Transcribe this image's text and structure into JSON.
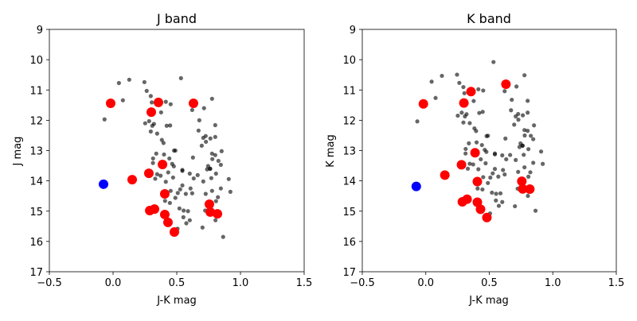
{
  "chart_data": [
    {
      "type": "scatter",
      "title": "J band",
      "xlabel": "J-K mag",
      "ylabel": "J mag",
      "xlim": [
        -0.5,
        1.5
      ],
      "ylim": [
        17,
        9
      ],
      "y_inverted": true,
      "xticks": [
        "−0.5",
        "0.0",
        "0.5",
        "1.0",
        "1.5"
      ],
      "xtick_values": [
        -0.5,
        0,
        0.5,
        1.0,
        1.5
      ],
      "yticks": [
        "9",
        "10",
        "11",
        "12",
        "13",
        "14",
        "15",
        "16",
        "17"
      ],
      "ytick_values": [
        9,
        10,
        11,
        12,
        13,
        14,
        15,
        16,
        17
      ],
      "y_field": "j"
    },
    {
      "type": "scatter",
      "title": "K band",
      "xlabel": "J-K mag",
      "ylabel": "K mag",
      "xlim": [
        -0.5,
        1.5
      ],
      "ylim": [
        17,
        9
      ],
      "y_inverted": true,
      "xticks": [
        "−0.5",
        "0.0",
        "0.5",
        "1.0",
        "1.5"
      ],
      "xtick_values": [
        -0.5,
        0,
        0.5,
        1.0,
        1.5
      ],
      "yticks": [
        "9",
        "10",
        "11",
        "12",
        "13",
        "14",
        "15",
        "16",
        "17"
      ],
      "ytick_values": [
        9,
        10,
        11,
        12,
        13,
        14,
        15,
        16,
        17
      ],
      "y_field": "k"
    }
  ],
  "series": {
    "field_stars": {
      "color": "#000000",
      "opacity": 0.6,
      "points_jk_j": [
        [
          0.046,
          10.77
        ],
        [
          0.127,
          10.66
        ],
        [
          0.246,
          10.74
        ],
        [
          0.533,
          10.61
        ],
        [
          0.264,
          11.03
        ],
        [
          0.296,
          11.2
        ],
        [
          0.077,
          11.34
        ],
        [
          0.304,
          11.41
        ],
        [
          0.414,
          11.39
        ],
        [
          0.452,
          11.47
        ],
        [
          0.777,
          11.29
        ],
        [
          0.621,
          11.66
        ],
        [
          0.714,
          11.6
        ],
        [
          -0.067,
          11.97
        ],
        [
          0.377,
          11.74
        ],
        [
          0.677,
          12.0
        ],
        [
          0.252,
          12.1
        ],
        [
          0.283,
          12.03
        ],
        [
          0.321,
          12.12
        ],
        [
          0.308,
          12.18
        ],
        [
          0.421,
          12.18
        ],
        [
          0.448,
          12.17
        ],
        [
          0.802,
          12.16
        ],
        [
          0.296,
          12.37
        ],
        [
          0.346,
          12.44
        ],
        [
          0.671,
          12.34
        ],
        [
          0.727,
          12.52
        ],
        [
          0.708,
          12.58
        ],
        [
          0.764,
          12.6
        ],
        [
          0.802,
          12.55
        ],
        [
          0.729,
          12.71
        ],
        [
          0.696,
          12.84
        ],
        [
          0.383,
          12.65
        ],
        [
          0.396,
          12.75
        ],
        [
          0.339,
          13.1
        ],
        [
          0.4,
          13.13
        ],
        [
          0.479,
          13.0
        ],
        [
          0.489,
          13.0
        ],
        [
          0.314,
          13.26
        ],
        [
          0.313,
          13.41
        ],
        [
          0.442,
          13.26
        ],
        [
          0.464,
          13.44
        ],
        [
          0.544,
          13.64
        ],
        [
          0.627,
          13.23
        ],
        [
          0.777,
          13.1
        ],
        [
          0.802,
          13.15
        ],
        [
          0.852,
          13.02
        ],
        [
          0.779,
          13.28
        ],
        [
          0.827,
          13.34
        ],
        [
          0.846,
          13.47
        ],
        [
          0.746,
          13.51
        ],
        [
          0.761,
          13.6
        ],
        [
          0.477,
          13.52
        ],
        [
          0.544,
          13.67
        ],
        [
          0.346,
          13.78
        ],
        [
          0.373,
          13.83
        ],
        [
          0.331,
          13.93
        ],
        [
          0.433,
          13.72
        ],
        [
          0.471,
          13.89
        ],
        [
          0.414,
          14.03
        ],
        [
          0.602,
          13.76
        ],
        [
          0.633,
          13.92
        ],
        [
          0.664,
          13.81
        ],
        [
          0.708,
          14.02
        ],
        [
          0.771,
          13.91
        ],
        [
          0.808,
          13.76
        ],
        [
          0.738,
          13.62
        ],
        [
          0.763,
          13.6
        ],
        [
          0.908,
          13.94
        ],
        [
          0.921,
          14.36
        ],
        [
          0.846,
          14.25
        ],
        [
          0.777,
          14.33
        ],
        [
          0.727,
          14.43
        ],
        [
          0.823,
          14.54
        ],
        [
          0.808,
          14.67
        ],
        [
          0.804,
          15.3
        ],
        [
          0.723,
          14.98
        ],
        [
          0.702,
          15.54
        ],
        [
          0.864,
          15.85
        ],
        [
          0.544,
          14.15
        ],
        [
          0.508,
          14.4
        ],
        [
          0.527,
          14.28
        ],
        [
          0.608,
          14.25
        ],
        [
          0.571,
          14.43
        ],
        [
          0.621,
          14.41
        ],
        [
          0.452,
          14.33
        ],
        [
          0.489,
          14.56
        ],
        [
          0.408,
          14.66
        ],
        [
          0.446,
          14.73
        ],
        [
          0.521,
          14.91
        ],
        [
          0.554,
          14.98
        ],
        [
          0.588,
          15.0
        ],
        [
          0.552,
          15.2
        ],
        [
          0.575,
          15.4
        ],
        [
          0.602,
          15.3
        ],
        [
          0.506,
          15.58
        ]
      ]
    },
    "members": {
      "color": "#ff0000",
      "opacity": 1,
      "points_jk_j": [
        [
          -0.019,
          11.44
        ],
        [
          0.356,
          11.41
        ],
        [
          0.3,
          11.73
        ],
        [
          0.631,
          11.44
        ],
        [
          0.388,
          13.46
        ],
        [
          0.281,
          13.75
        ],
        [
          0.15,
          13.96
        ],
        [
          0.406,
          14.43
        ],
        [
          0.288,
          14.98
        ],
        [
          0.325,
          14.93
        ],
        [
          0.406,
          15.11
        ],
        [
          0.431,
          15.37
        ],
        [
          0.481,
          15.69
        ],
        [
          0.756,
          14.77
        ],
        [
          0.763,
          15.03
        ],
        [
          0.819,
          15.09
        ]
      ]
    },
    "target": {
      "color": "#0000ff",
      "opacity": 1,
      "points_jk_j": [
        [
          -0.075,
          14.11
        ]
      ]
    }
  }
}
